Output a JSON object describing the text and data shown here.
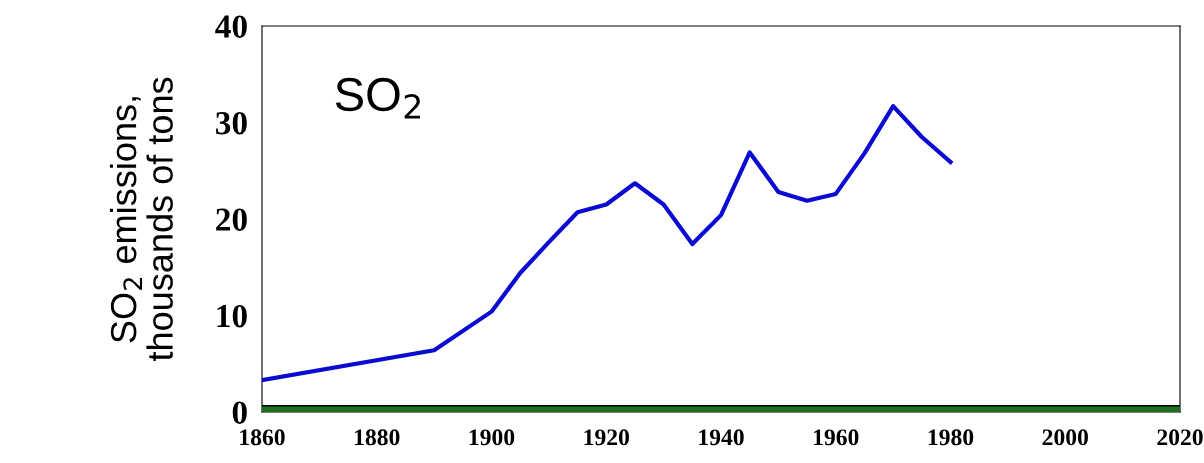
{
  "chart_data": {
    "type": "line",
    "ylabel": "SO$_{2}$ emissions,\nthousands of tons",
    "annotations": [
      "SO$_{2}$"
    ],
    "x": [
      1860,
      1890,
      1900,
      1905,
      1910,
      1915,
      1920,
      1925,
      1930,
      1935,
      1940,
      1945,
      1950,
      1955,
      1960,
      1965,
      1970,
      1975,
      1980
    ],
    "series": [
      {
        "color": "#0a0ad2",
        "values": [
          3.3,
          6.4,
          10.4,
          14.4,
          17.6,
          20.7,
          21.5,
          23.7,
          21.5,
          17.4,
          20.4,
          26.9,
          22.8,
          21.9,
          22.6,
          26.8,
          31.7,
          28.5,
          25.9
        ]
      }
    ],
    "xlim": [
      1860,
      2020
    ],
    "xticks": [
      1860,
      1880,
      1900,
      1920,
      1940,
      1960,
      1980,
      2000,
      2020
    ],
    "ylim": [
      0,
      40
    ],
    "yticks": [
      0,
      10,
      20,
      30,
      40
    ],
    "ref_lines": [
      {
        "axis": "y",
        "value": 0,
        "color": "#1f6f1f"
      }
    ],
    "grid": false,
    "legend": false,
    "marker": "none",
    "line_style": "solid"
  }
}
